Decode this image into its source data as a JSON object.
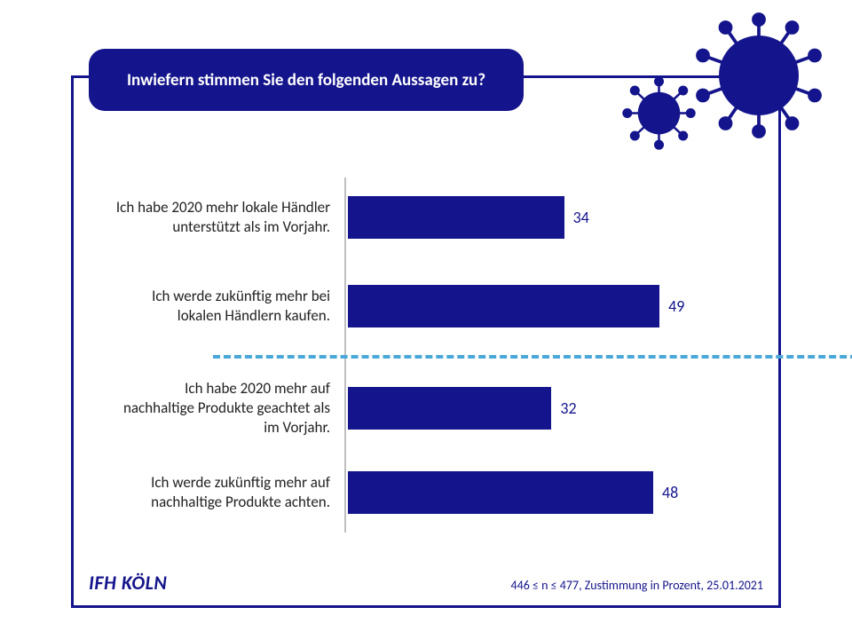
{
  "title": "Inwiefern stimmen Sie den folgenden Aussagen zu?",
  "chart": {
    "type": "bar",
    "orientation": "horizontal",
    "xlim": [
      0,
      60
    ],
    "bar_color": "#14148c",
    "axis_color": "#bfbfbf",
    "divider_color": "#4aa8d8",
    "divider_after_index": 1,
    "value_label_color": "#14148c",
    "value_label_fontsize": 18,
    "category_label_fontsize": 17,
    "items": [
      {
        "label": "Ich habe 2020 mehr lokale Händler unterstützt als im Vorjahr.",
        "value": 34
      },
      {
        "label": "Ich werde zukünftig mehr bei lokalen Händlern kaufen.",
        "value": 49
      },
      {
        "label": "Ich habe 2020 mehr auf nachhaltige Produkte geachtet als im Vorjahr.",
        "value": 32
      },
      {
        "label": "Ich werde zukünftig mehr auf nachhaltige Produkte achten.",
        "value": 48
      }
    ]
  },
  "footer": {
    "brand": "IFH KÖLN",
    "note": "446 ≤ n ≤ 477, Zustimmung in Prozent, 25.01.2021"
  },
  "decor": {
    "virus_color": "#14148c",
    "border_color": "#14148c",
    "background_color": "#ffffff"
  }
}
